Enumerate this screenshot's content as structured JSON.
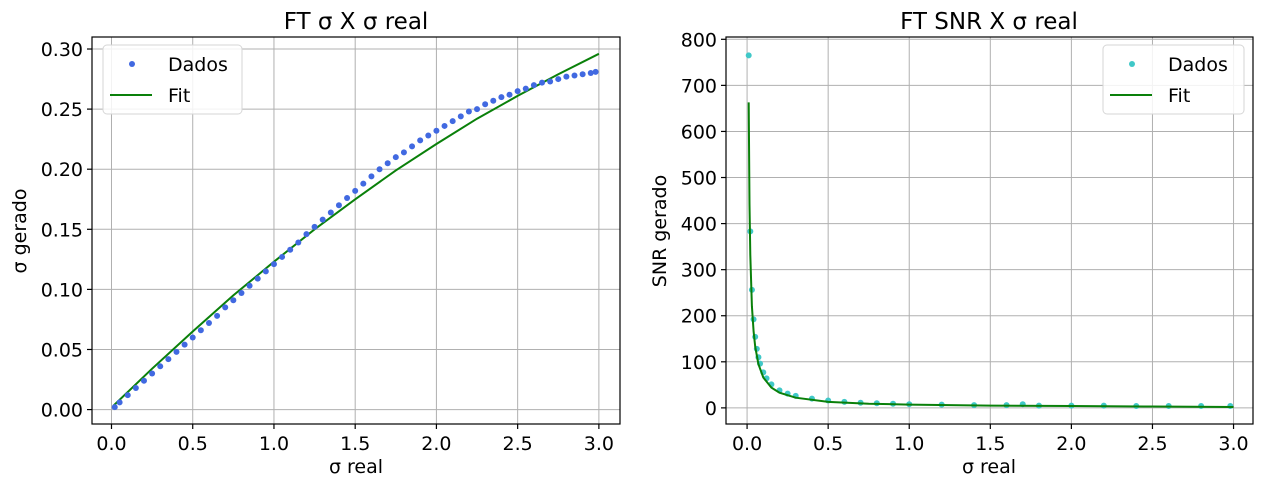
{
  "colors": {
    "left_points": "#4169e1",
    "right_points": "#40c8c8",
    "fit_line": "#0a800a",
    "grid": "#b0b0b0"
  },
  "chart_data": [
    {
      "type": "scatter",
      "title": "FT σ X σ real",
      "xlabel": "σ real",
      "ylabel": "σ gerado",
      "xlim": [
        -0.12,
        3.13
      ],
      "ylim": [
        -0.012,
        0.31
      ],
      "xticks": [
        0.0,
        0.5,
        1.0,
        1.5,
        2.0,
        2.5,
        3.0
      ],
      "xtick_labels": [
        "0.0",
        "0.5",
        "1.0",
        "1.5",
        "2.0",
        "2.5",
        "3.0"
      ],
      "yticks": [
        0.0,
        0.05,
        0.1,
        0.15,
        0.2,
        0.25,
        0.3
      ],
      "ytick_labels": [
        "0.00",
        "0.05",
        "0.10",
        "0.15",
        "0.20",
        "0.25",
        "0.30"
      ],
      "grid": true,
      "legend_placement": "top-left",
      "legend": [
        "Dados",
        "Fit"
      ],
      "series": [
        {
          "name": "Dados",
          "kind": "points",
          "x": [
            0.02,
            0.05,
            0.1,
            0.15,
            0.2,
            0.25,
            0.3,
            0.35,
            0.4,
            0.45,
            0.5,
            0.55,
            0.6,
            0.65,
            0.7,
            0.75,
            0.8,
            0.85,
            0.9,
            0.95,
            1.0,
            1.05,
            1.1,
            1.15,
            1.2,
            1.25,
            1.3,
            1.35,
            1.4,
            1.45,
            1.5,
            1.55,
            1.6,
            1.65,
            1.7,
            1.75,
            1.8,
            1.85,
            1.9,
            1.95,
            2.0,
            2.05,
            2.1,
            2.15,
            2.2,
            2.25,
            2.3,
            2.35,
            2.4,
            2.45,
            2.5,
            2.55,
            2.6,
            2.65,
            2.7,
            2.75,
            2.8,
            2.85,
            2.9,
            2.95,
            2.98
          ],
          "y": [
            0.002,
            0.006,
            0.012,
            0.018,
            0.024,
            0.03,
            0.036,
            0.042,
            0.048,
            0.054,
            0.06,
            0.066,
            0.072,
            0.078,
            0.085,
            0.091,
            0.097,
            0.103,
            0.109,
            0.115,
            0.121,
            0.127,
            0.133,
            0.139,
            0.146,
            0.152,
            0.158,
            0.164,
            0.17,
            0.176,
            0.182,
            0.188,
            0.194,
            0.2,
            0.205,
            0.21,
            0.214,
            0.219,
            0.224,
            0.228,
            0.232,
            0.236,
            0.24,
            0.244,
            0.248,
            0.25,
            0.254,
            0.257,
            0.26,
            0.262,
            0.265,
            0.267,
            0.27,
            0.272,
            0.273,
            0.275,
            0.277,
            0.278,
            0.279,
            0.28,
            0.281
          ]
        },
        {
          "name": "Fit",
          "kind": "line",
          "x": [
            0.01,
            0.25,
            0.5,
            0.75,
            1.0,
            1.25,
            1.5,
            1.75,
            2.0,
            2.25,
            2.5,
            2.75,
            3.0
          ],
          "y": [
            0.003,
            0.034,
            0.065,
            0.095,
            0.123,
            0.15,
            0.175,
            0.199,
            0.221,
            0.242,
            0.261,
            0.279,
            0.296
          ]
        }
      ]
    },
    {
      "type": "scatter",
      "title": "FT SNR X σ real",
      "xlabel": "σ real",
      "ylabel": "SNR gerado",
      "xlim": [
        -0.13,
        3.12
      ],
      "ylim": [
        -35,
        805
      ],
      "xticks": [
        0.0,
        0.5,
        1.0,
        1.5,
        2.0,
        2.5,
        3.0
      ],
      "xtick_labels": [
        "0.0",
        "0.5",
        "1.0",
        "1.5",
        "2.0",
        "2.5",
        "3.0"
      ],
      "yticks": [
        0,
        100,
        200,
        300,
        400,
        500,
        600,
        700,
        800
      ],
      "ytick_labels": [
        "0",
        "100",
        "200",
        "300",
        "400",
        "500",
        "600",
        "700",
        "800"
      ],
      "grid": true,
      "legend_placement": "top-right",
      "legend": [
        "Dados",
        "Fit"
      ],
      "series": [
        {
          "name": "Dados",
          "kind": "points",
          "x": [
            0.01,
            0.02,
            0.03,
            0.04,
            0.05,
            0.06,
            0.07,
            0.08,
            0.1,
            0.12,
            0.15,
            0.2,
            0.25,
            0.3,
            0.4,
            0.5,
            0.6,
            0.7,
            0.8,
            0.9,
            1.0,
            1.2,
            1.4,
            1.6,
            1.7,
            1.8,
            2.0,
            2.2,
            2.4,
            2.6,
            2.8,
            2.98
          ],
          "y": [
            765,
            383,
            256,
            192,
            154,
            128,
            110,
            96,
            77,
            64,
            51,
            38,
            31,
            26,
            20,
            16,
            13,
            11,
            10,
            9,
            8,
            7,
            6,
            6,
            8,
            5,
            5,
            5,
            4,
            4,
            4,
            4
          ]
        },
        {
          "name": "Fit",
          "kind": "line",
          "x": [
            0.01,
            0.015,
            0.02,
            0.03,
            0.04,
            0.05,
            0.07,
            0.1,
            0.15,
            0.2,
            0.3,
            0.5,
            0.75,
            1.0,
            1.5,
            2.0,
            2.5,
            3.0
          ],
          "y": [
            663,
            442,
            332,
            221,
            166,
            133,
            95,
            66,
            44,
            33,
            22,
            13,
            9,
            7,
            5,
            4,
            3,
            2
          ]
        }
      ]
    }
  ]
}
